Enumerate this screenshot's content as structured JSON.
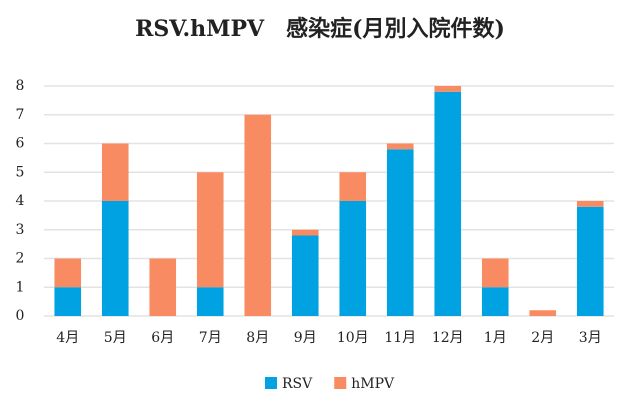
{
  "chart_data": {
    "type": "stacked-bar",
    "title": "RSV.hMPV　感染症(月別入院件数)",
    "categories": [
      "4月",
      "5月",
      "6月",
      "7月",
      "8月",
      "9月",
      "10月",
      "11月",
      "12月",
      "1月",
      "2月",
      "3月"
    ],
    "series": [
      {
        "name": "RSV",
        "color": "#00a2e1",
        "values": [
          1,
          4,
          0,
          1,
          0,
          2.8,
          4,
          5.8,
          7.8,
          1,
          0,
          3.8
        ]
      },
      {
        "name": "hMPV",
        "color": "#f98b62",
        "values": [
          1,
          2,
          2,
          4,
          7,
          0.2,
          1,
          0.2,
          0.2,
          1,
          0.2,
          0.2
        ]
      }
    ],
    "ylim": [
      0,
      8
    ],
    "yticks": [
      0,
      1,
      2,
      3,
      4,
      5,
      6,
      7,
      8
    ],
    "grid": true,
    "legend": "bottom"
  }
}
